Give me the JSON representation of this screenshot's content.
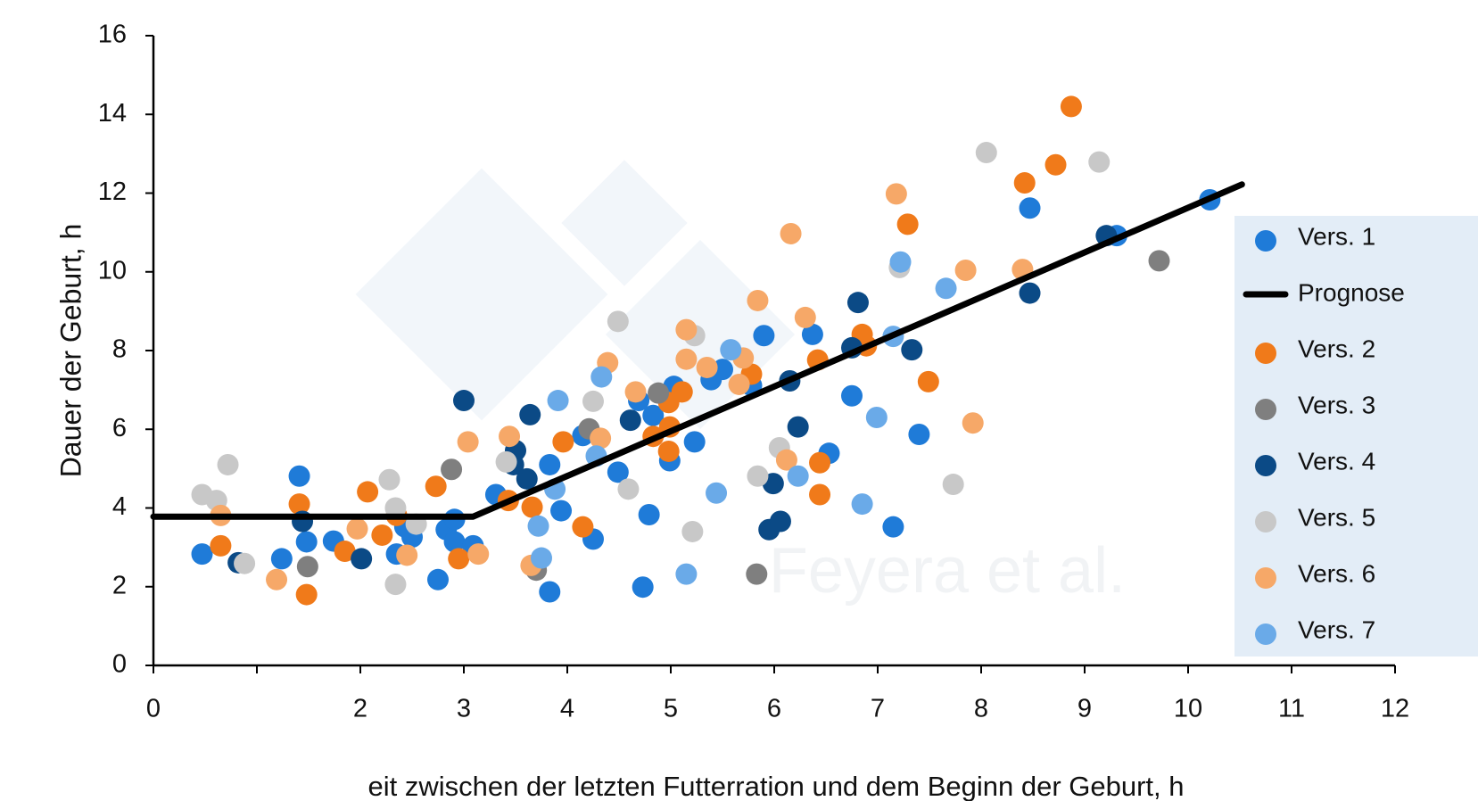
{
  "chart_data": {
    "type": "scatter",
    "x_label": "eit zwischen der letzten Futterration und dem Beginn der Geburt, h",
    "y_label": "Dauer der Geburt, h",
    "annotation": "Feyera et al.",
    "xlim": [
      0,
      12
    ],
    "ylim": [
      0,
      16
    ],
    "xticks": [
      0,
      {
        "value": 1,
        "label": null
      },
      2,
      3,
      4,
      5,
      6,
      7,
      8,
      9,
      10,
      11,
      12
    ],
    "yticks": [
      0,
      2,
      4,
      6,
      8,
      10,
      12,
      14,
      16
    ],
    "grid": false,
    "legend": "right",
    "series": [
      {
        "name": "Vers. 1",
        "color": "#1f7bd8",
        "x": [
          0.47,
          1.24,
          1.41,
          1.48,
          1.74,
          2.35,
          2.43,
          2.5,
          2.75,
          2.83,
          2.91,
          2.91,
          3.09,
          3.31,
          3.83,
          3.83,
          3.94,
          4.15,
          4.25,
          4.49,
          4.69,
          4.73,
          4.79,
          4.83,
          4.99,
          5.03,
          5.23,
          5.39,
          5.5,
          5.78,
          5.9,
          6.37,
          6.53,
          6.75,
          7.15,
          7.4,
          8.47,
          9.31,
          10.21
        ],
        "values": [
          2.83,
          2.71,
          4.81,
          3.14,
          3.16,
          2.83,
          3.52,
          3.26,
          2.18,
          3.45,
          3.71,
          3.14,
          3.04,
          4.34,
          5.1,
          1.87,
          3.93,
          5.84,
          3.21,
          4.91,
          6.73,
          1.99,
          3.83,
          6.35,
          5.2,
          7.09,
          5.68,
          7.26,
          7.52,
          7.11,
          8.38,
          8.41,
          5.39,
          6.85,
          3.52,
          5.87,
          11.62,
          10.92,
          11.83
        ]
      },
      {
        "name": "Prognose",
        "type": "line",
        "color": "#000000",
        "x": [
          0,
          3.09,
          10.52
        ],
        "values": [
          3.78,
          3.78,
          12.22
        ]
      },
      {
        "name": "Vers. 2",
        "color": "#f07a1a",
        "x": [
          0.65,
          1.41,
          1.48,
          1.85,
          2.07,
          2.21,
          2.35,
          2.73,
          2.95,
          3.43,
          3.66,
          3.96,
          4.15,
          4.83,
          4.98,
          4.98,
          4.99,
          5.11,
          5.78,
          6.42,
          6.44,
          6.44,
          6.85,
          6.89,
          7.29,
          7.49,
          8.42,
          8.72,
          8.87
        ],
        "values": [
          3.04,
          4.1,
          1.8,
          2.9,
          4.41,
          3.31,
          3.81,
          4.55,
          2.71,
          4.19,
          4.02,
          5.68,
          3.52,
          5.82,
          6.68,
          5.44,
          6.06,
          6.95,
          7.4,
          7.76,
          5.15,
          4.34,
          8.41,
          8.12,
          11.21,
          7.21,
          12.26,
          12.72,
          14.2
        ]
      },
      {
        "name": "Vers. 3",
        "color": "#7f7f7f",
        "x": [
          1.49,
          2.88,
          3.7,
          4.21,
          4.88,
          5.83,
          9.72
        ],
        "values": [
          2.51,
          4.98,
          2.42,
          6.01,
          6.92,
          2.32,
          10.28
        ]
      },
      {
        "name": "Vers. 4",
        "color": "#0b4a86",
        "x": [
          0.82,
          1.44,
          2.01,
          3.0,
          3.5,
          3.48,
          3.61,
          3.64,
          4.61,
          5.99,
          5.95,
          6.06,
          6.15,
          6.23,
          6.75,
          6.81,
          7.33,
          8.47,
          9.21
        ],
        "values": [
          2.61,
          3.66,
          2.71,
          6.73,
          5.46,
          5.1,
          4.74,
          6.37,
          6.23,
          4.62,
          3.45,
          3.66,
          7.23,
          6.06,
          8.07,
          9.22,
          8.02,
          9.46,
          10.92
        ]
      },
      {
        "name": "Vers. 5",
        "color": "#c8c8c8",
        "x": [
          0.47,
          0.61,
          0.72,
          0.88,
          2.28,
          2.34,
          2.34,
          2.54,
          3.41,
          4.25,
          4.49,
          4.59,
          5.21,
          5.23,
          5.84,
          6.05,
          7.21,
          7.73,
          8.05,
          9.14
        ],
        "values": [
          4.34,
          4.19,
          5.1,
          2.59,
          4.72,
          2.06,
          4.0,
          3.59,
          5.17,
          6.71,
          8.74,
          4.48,
          3.4,
          8.38,
          4.81,
          5.53,
          10.11,
          4.6,
          13.03,
          12.79
        ]
      },
      {
        "name": "Vers. 6",
        "color": "#f6a868",
        "x": [
          0.65,
          1.19,
          1.97,
          2.45,
          3.04,
          3.14,
          3.44,
          3.65,
          4.32,
          4.39,
          4.66,
          5.15,
          5.15,
          5.35,
          5.66,
          5.7,
          5.84,
          6.12,
          6.16,
          6.3,
          7.18,
          7.85,
          7.92,
          8.4
        ],
        "values": [
          3.81,
          2.18,
          3.47,
          2.8,
          5.68,
          2.83,
          5.82,
          2.54,
          5.77,
          7.69,
          6.95,
          8.53,
          7.78,
          7.57,
          7.14,
          7.81,
          9.27,
          5.22,
          10.97,
          8.84,
          11.98,
          10.04,
          6.16,
          10.06
        ]
      },
      {
        "name": "Vers. 7",
        "color": "#6aaae8",
        "x": [
          3.72,
          3.75,
          3.88,
          3.91,
          4.28,
          4.33,
          5.15,
          5.44,
          5.58,
          6.23,
          6.85,
          6.99,
          7.15,
          7.22,
          7.66
        ],
        "values": [
          3.54,
          2.73,
          4.48,
          6.73,
          5.32,
          7.33,
          2.32,
          4.38,
          8.02,
          4.81,
          4.1,
          6.3,
          8.36,
          10.25,
          9.58
        ]
      }
    ]
  }
}
